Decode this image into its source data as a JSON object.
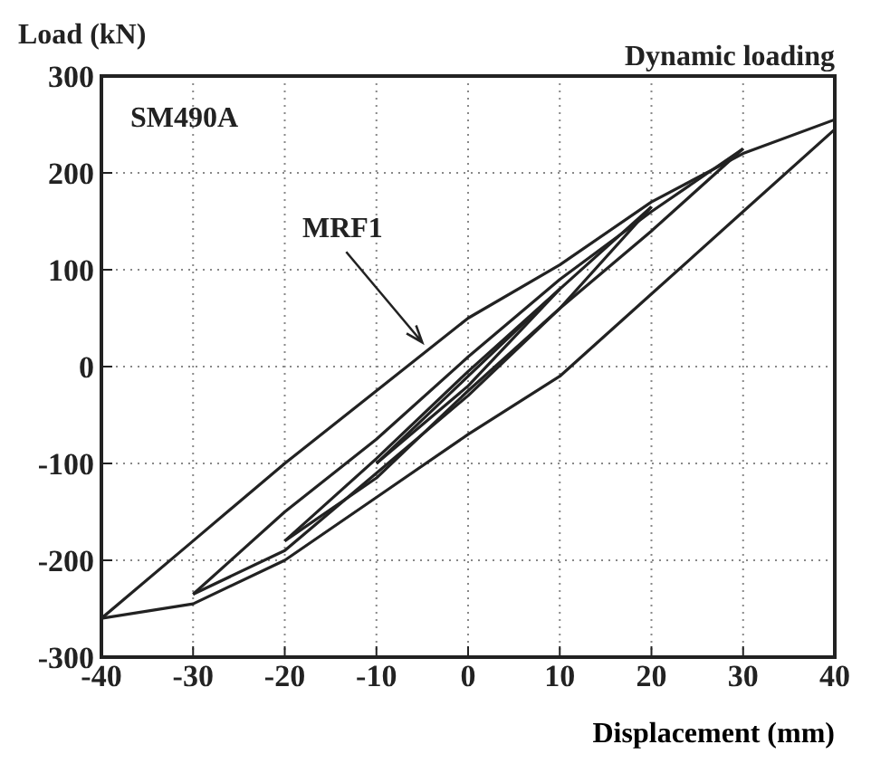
{
  "chart_data": {
    "type": "line",
    "title": "Dynamic loading",
    "xlabel": "Displacement (mm)",
    "ylabel": "Load (kN)",
    "xlim": [
      -40,
      40
    ],
    "xticks": [
      -40,
      -30,
      -20,
      -10,
      0,
      10,
      20,
      30,
      40
    ],
    "ylim": [
      -300,
      300
    ],
    "yticks": [
      -300,
      -200,
      -100,
      0,
      100,
      200,
      300
    ],
    "grid": true,
    "marker": "none",
    "line_style": "solid",
    "annotations": [
      "SM490A",
      {
        "text": "MRF1",
        "x": -5,
        "y": 25
      }
    ],
    "series": [
      {
        "color": "#222222",
        "x": [
          -40,
          -30,
          -20,
          -10,
          0,
          10,
          20,
          30,
          40
        ],
        "values": [
          -260,
          -180,
          -100,
          -25,
          50,
          105,
          170,
          220,
          255
        ]
      },
      {
        "color": "#222222",
        "x": [
          -40,
          -30,
          -20,
          -10,
          0,
          10,
          20,
          30,
          40
        ],
        "values": [
          -260,
          -245,
          -200,
          -135,
          -70,
          -10,
          75,
          160,
          245
        ]
      },
      {
        "color": "#222222",
        "x": [
          -30,
          -20,
          -10,
          0,
          10,
          20,
          30
        ],
        "values": [
          -235,
          -150,
          -75,
          10,
          90,
          160,
          225
        ]
      },
      {
        "color": "#222222",
        "x": [
          -30,
          -20,
          -10,
          0,
          10,
          20,
          30
        ],
        "values": [
          -235,
          -190,
          -110,
          -30,
          60,
          140,
          225
        ]
      },
      {
        "color": "#222222",
        "x": [
          -20,
          -10,
          0,
          10,
          20
        ],
        "values": [
          -180,
          -95,
          -5,
          80,
          165
        ]
      },
      {
        "color": "#222222",
        "x": [
          -20,
          -10,
          0,
          10,
          20
        ],
        "values": [
          -180,
          -115,
          -25,
          60,
          165
        ]
      },
      {
        "color": "#222222",
        "x": [
          -10,
          0,
          10
        ],
        "values": [
          -100,
          -10,
          80
        ]
      },
      {
        "color": "#222222",
        "x": [
          -10,
          0,
          10
        ],
        "values": [
          -100,
          -20,
          80
        ]
      }
    ]
  }
}
